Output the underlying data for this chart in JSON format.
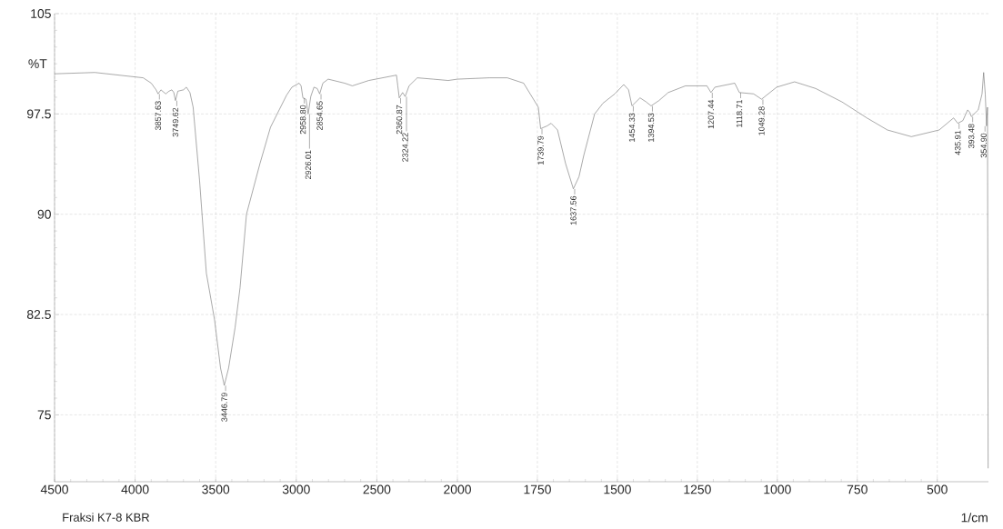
{
  "chart_data": [
    {
      "type": "line",
      "ylabel": "%T",
      "xlim": [
        4500,
        2000
      ],
      "ylim": [
        70,
        105
      ],
      "xticks": [
        4500,
        4000,
        3500,
        3000,
        2500,
        2000
      ],
      "yticks": [
        75,
        82.5,
        90,
        97.5,
        105
      ],
      "grid": true,
      "x": [
        4500,
        4250,
        3950,
        3900,
        3870,
        3857.63,
        3840,
        3810,
        3790,
        3772,
        3760,
        3749.62,
        3735,
        3700,
        3682,
        3660,
        3640,
        3600,
        3558,
        3507,
        3470,
        3446.79,
        3420,
        3380,
        3349,
        3309,
        3225,
        3160,
        3106,
        3060,
        3027,
        2982,
        2970,
        2958.8,
        2940,
        2926.01,
        2910,
        2890,
        2870,
        2854.65,
        2835,
        2802,
        2700,
        2652,
        2550,
        2378,
        2370,
        2360.87,
        2340,
        2324.22,
        2300,
        2249,
        2150,
        2057,
        2000
      ],
      "series": [
        {
          "color": "#707070",
          "values": [
            100.5,
            100.6,
            100.2,
            99.8,
            99.3,
            99.0,
            99.3,
            99.0,
            99.2,
            99.3,
            99.1,
            98.5,
            99.2,
            99.3,
            99.5,
            99.1,
            98.0,
            92.5,
            85.6,
            82.1,
            78.5,
            77.2,
            78.5,
            81.5,
            84.5,
            90.0,
            93.8,
            96.5,
            97.8,
            98.9,
            99.5,
            99.8,
            99.6,
            98.7,
            98.6,
            97.5,
            98.8,
            99.5,
            99.4,
            99.0,
            99.8,
            100.1,
            99.8,
            99.6,
            100.0,
            100.4,
            99.6,
            98.7,
            99.1,
            98.8,
            99.6,
            100.2,
            100.1,
            100.0,
            100.1
          ]
        }
      ],
      "annotations": [
        {
          "text": "3857.63",
          "x": 3857.63,
          "y": 99.0
        },
        {
          "text": "3749.62",
          "x": 3749.62,
          "y": 98.5
        },
        {
          "text": "3446.79",
          "x": 3446.79,
          "y": 77.2
        },
        {
          "text": "2958.80",
          "x": 2958.8,
          "y": 98.7
        },
        {
          "text": "2926.01",
          "x": 2926.01,
          "y": 97.5
        },
        {
          "text": "2854.65",
          "x": 2854.65,
          "y": 99.0
        },
        {
          "text": "2360.87",
          "x": 2360.87,
          "y": 98.7
        },
        {
          "text": "2324.22",
          "x": 2324.22,
          "y": 98.8
        },
        "Fraksi K7-8 KBR"
      ]
    },
    {
      "type": "line",
      "xlabel": "1/cm",
      "xlim": [
        2000,
        340
      ],
      "ylim": [
        70,
        105
      ],
      "xticks": [
        1750,
        1500,
        1250,
        1000,
        750,
        500
      ],
      "yticks": [
        75,
        82.5,
        90,
        97.5,
        105
      ],
      "grid": true,
      "tick_labels": "x",
      "x": [
        2000,
        1900,
        1844,
        1793,
        1747,
        1739.79,
        1720,
        1707,
        1687,
        1662,
        1637.56,
        1620,
        1605,
        1571,
        1545,
        1508,
        1480,
        1465,
        1454.33,
        1429,
        1410,
        1394.53,
        1370,
        1341,
        1287,
        1220,
        1207.44,
        1195,
        1133,
        1118.71,
        1074,
        1049.28,
        1002,
        946,
        880,
        798,
        720,
        656,
        581,
        494,
        449,
        435.91,
        420,
        405,
        398,
        393.48,
        372,
        360,
        355,
        350,
        346,
        343,
        341
      ],
      "series": [
        {
          "color": "#707070",
          "values": [
            100.1,
            100.2,
            100.2,
            99.8,
            98.0,
            96.4,
            96.6,
            96.8,
            96.3,
            93.8,
            91.9,
            92.8,
            94.4,
            97.5,
            98.3,
            99.0,
            99.7,
            99.3,
            98.1,
            98.7,
            98.4,
            98.1,
            98.5,
            99.1,
            99.6,
            99.6,
            99.1,
            99.5,
            99.8,
            99.1,
            99.0,
            98.6,
            99.5,
            99.9,
            99.4,
            98.4,
            97.2,
            96.3,
            95.8,
            96.3,
            97.2,
            96.8,
            97.0,
            97.8,
            97.6,
            97.3,
            97.8,
            99.0,
            100.6,
            99.0,
            96.6,
            98.0,
            71
          ]
        }
      ],
      "annotations": [
        {
          "text": "1739.79",
          "x": 1739.79,
          "y": 96.4
        },
        {
          "text": "1637.56",
          "x": 1637.56,
          "y": 91.9
        },
        {
          "text": "1454.33",
          "x": 1454.33,
          "y": 98.1
        },
        {
          "text": "1394.53",
          "x": 1394.53,
          "y": 98.1
        },
        {
          "text": "1207.44",
          "x": 1207.44,
          "y": 99.1
        },
        {
          "text": "1118.71",
          "x": 1118.71,
          "y": 99.1
        },
        {
          "text": "1049.28",
          "x": 1049.28,
          "y": 98.6
        },
        {
          "text": "435.91",
          "x": 435.91,
          "y": 96.8
        },
        {
          "text": "393.48",
          "x": 393.48,
          "y": 97.3
        },
        {
          "text": "354.90",
          "x": 354.9,
          "y": 96.6
        }
      ]
    }
  ]
}
